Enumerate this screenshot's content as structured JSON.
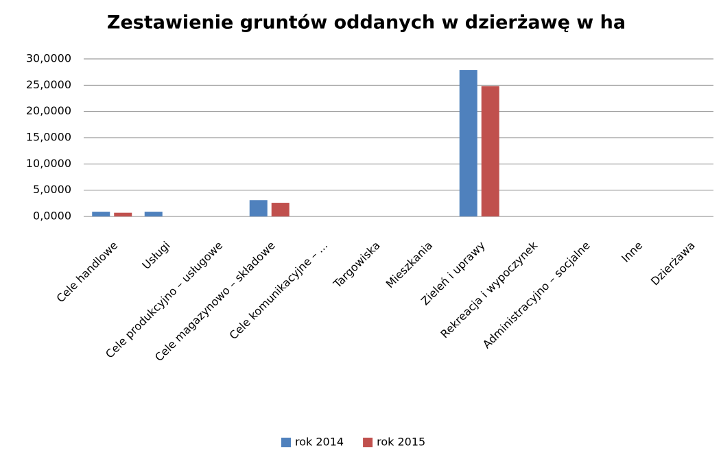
{
  "chart_data": {
    "type": "bar",
    "title": "Zestawienie gruntów oddanych w dzierżawę w ha",
    "categories": [
      "Cele handlowe",
      "Usługi",
      "Cele produkcyjno – usługowe",
      "Cele magazynowo  – składowe",
      "Cele komunikacyjne – ...",
      "Targowiska",
      "Mieszkania",
      "Zieleń i uprawy",
      "Rekreacja i wypoczynek",
      "Administracyjno – socjalne",
      "Inne",
      "Dzierżawa"
    ],
    "series": [
      {
        "name": "rok 2014",
        "color": "#4f81bd",
        "values": [
          0.9,
          0.9,
          0,
          3.1,
          0,
          0,
          0,
          27.9,
          0,
          0,
          0,
          0
        ]
      },
      {
        "name": "rok 2015",
        "color": "#c0504d",
        "values": [
          0.7,
          0,
          0,
          2.6,
          0,
          0,
          0,
          24.8,
          0,
          0,
          0,
          0
        ]
      }
    ],
    "ylim": [
      0,
      30
    ],
    "yticks": [
      {
        "value": 0,
        "label": "0,0000"
      },
      {
        "value": 5,
        "label": "5,0000"
      },
      {
        "value": 10,
        "label": "10,0000"
      },
      {
        "value": 15,
        "label": "15,0000"
      },
      {
        "value": 20,
        "label": "20,0000"
      },
      {
        "value": 25,
        "label": "25,0000"
      },
      {
        "value": 30,
        "label": "30,0000"
      }
    ],
    "grid": true,
    "legend": "bottom"
  }
}
